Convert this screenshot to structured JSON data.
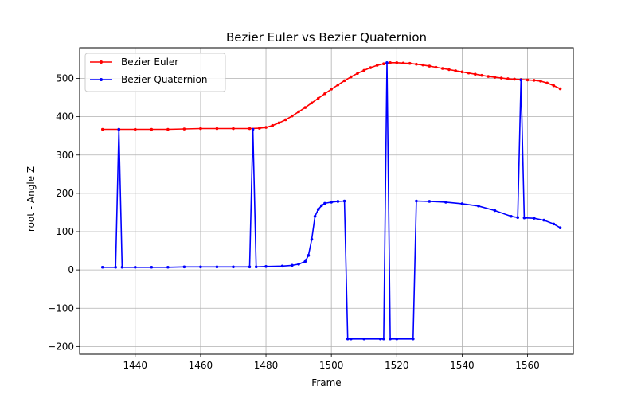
{
  "chart_data": {
    "type": "line",
    "title": "Bezier Euler vs Bezier Quaternion",
    "xlabel": "Frame",
    "ylabel": "root - Angle Z",
    "xlim": [
      1423,
      1574
    ],
    "ylim": [
      -220,
      580
    ],
    "xticks": [
      1440,
      1460,
      1480,
      1500,
      1520,
      1540,
      1560
    ],
    "yticks": [
      -200,
      -100,
      0,
      100,
      200,
      300,
      400,
      500
    ],
    "grid": true,
    "legend_position": "upper-left",
    "series": [
      {
        "name": "Bezier Euler",
        "color": "#ff0000",
        "marker": "dot",
        "x": [
          1430,
          1435,
          1440,
          1445,
          1450,
          1455,
          1460,
          1465,
          1470,
          1475,
          1478,
          1480,
          1482,
          1484,
          1486,
          1488,
          1490,
          1492,
          1494,
          1496,
          1498,
          1500,
          1502,
          1504,
          1506,
          1508,
          1510,
          1512,
          1514,
          1516,
          1518,
          1520,
          1522,
          1524,
          1526,
          1528,
          1530,
          1532,
          1534,
          1536,
          1538,
          1540,
          1542,
          1544,
          1546,
          1548,
          1550,
          1552,
          1554,
          1556,
          1558,
          1560,
          1562,
          1564,
          1566,
          1568,
          1570
        ],
        "y": [
          367,
          367,
          367,
          367,
          367,
          368,
          369,
          369,
          369,
          369,
          370,
          372,
          377,
          384,
          392,
          402,
          413,
          424,
          436,
          448,
          460,
          472,
          483,
          494,
          504,
          513,
          521,
          528,
          534,
          538,
          541,
          541,
          540,
          539,
          537,
          535,
          532,
          529,
          526,
          523,
          520,
          517,
          514,
          511,
          508,
          505,
          503,
          501,
          499,
          498,
          497,
          496,
          495,
          493,
          488,
          481,
          473
        ]
      },
      {
        "name": "Bezier Quaternion",
        "color": "#0000ff",
        "marker": "dot",
        "x": [
          1430,
          1434,
          1435,
          1436,
          1440,
          1445,
          1450,
          1455,
          1460,
          1465,
          1470,
          1475,
          1476,
          1477,
          1480,
          1485,
          1488,
          1490,
          1492,
          1493,
          1494,
          1495,
          1496,
          1497,
          1498,
          1500,
          1502,
          1504,
          1505,
          1506,
          1510,
          1515,
          1516,
          1517,
          1518,
          1520,
          1525,
          1526,
          1530,
          1535,
          1540,
          1545,
          1550,
          1555,
          1557,
          1558,
          1559,
          1562,
          1565,
          1568,
          1570
        ],
        "y": [
          7,
          7,
          367,
          7,
          7,
          7,
          7,
          8,
          8,
          8,
          8,
          8,
          367,
          8,
          9,
          10,
          12,
          15,
          22,
          38,
          80,
          140,
          158,
          168,
          174,
          177,
          179,
          180,
          -180,
          -180,
          -180,
          -180,
          -180,
          541,
          -180,
          -180,
          -180,
          180,
          179,
          177,
          173,
          167,
          155,
          140,
          137,
          496,
          136,
          135,
          130,
          120,
          110
        ]
      }
    ]
  }
}
